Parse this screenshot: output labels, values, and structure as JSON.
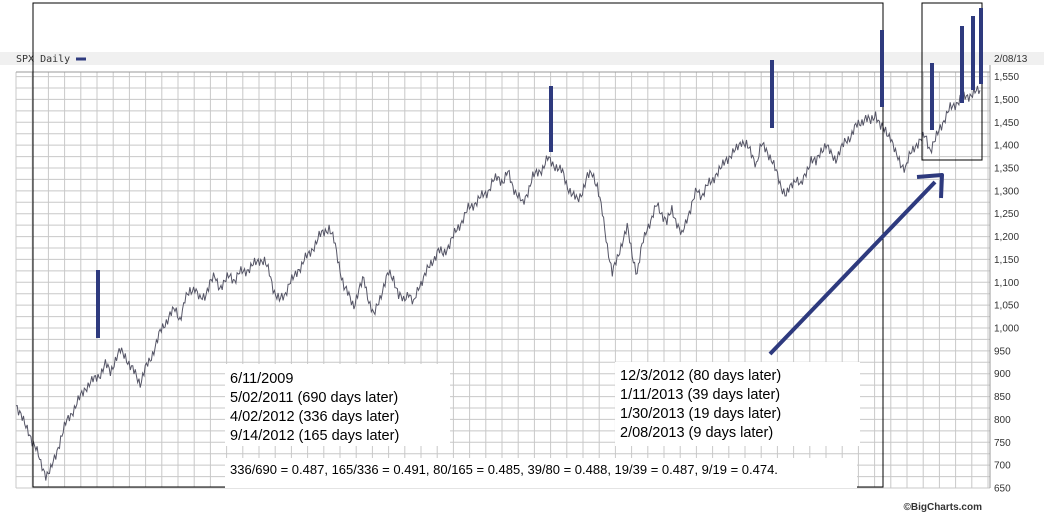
{
  "chart_data": {
    "type": "line",
    "legend": "SPX Daily",
    "date_label": "2/08/13",
    "credit": "©BigCharts.com",
    "ylim": [
      650,
      1560
    ],
    "y_ticks": [
      "650",
      "700",
      "750",
      "800",
      "850",
      "900",
      "950",
      "1,000",
      "1,050",
      "1,100",
      "1,150",
      "1,200",
      "1,250",
      "1,300",
      "1,350",
      "1,400",
      "1,450",
      "1,500",
      "1,550"
    ],
    "grid": true,
    "series": [
      {
        "values": [
          830,
          815,
          780,
          760,
          740,
          700,
          680,
          690,
          720,
          760,
          790,
          810,
          830,
          850,
          870,
          880,
          890,
          900,
          920,
          905,
          930,
          950,
          940,
          915,
          900,
          880,
          910,
          930,
          960,
          990,
          1010,
          1030,
          1040,
          1020,
          1060,
          1080,
          1090,
          1060,
          1070,
          1100,
          1110,
          1090,
          1100,
          1115,
          1105,
          1120,
          1125,
          1130,
          1140,
          1150,
          1145,
          1120,
          1080,
          1060,
          1070,
          1100,
          1110,
          1130,
          1150,
          1160,
          1180,
          1200,
          1210,
          1220,
          1190,
          1140,
          1090,
          1070,
          1050,
          1080,
          1110,
          1060,
          1025,
          1060,
          1090,
          1120,
          1110,
          1070,
          1060,
          1080,
          1050,
          1090,
          1110,
          1130,
          1150,
          1170,
          1160,
          1180,
          1200,
          1220,
          1240,
          1260,
          1270,
          1280,
          1290,
          1300,
          1320,
          1330,
          1320,
          1340,
          1310,
          1290,
          1270,
          1300,
          1330,
          1340,
          1350,
          1370,
          1360,
          1350,
          1340,
          1310,
          1290,
          1280,
          1300,
          1330,
          1340,
          1310,
          1250,
          1180,
          1120,
          1150,
          1190,
          1220,
          1160,
          1120,
          1180,
          1220,
          1240,
          1270,
          1250,
          1230,
          1260,
          1230,
          1200,
          1240,
          1270,
          1300,
          1290,
          1310,
          1320,
          1340,
          1350,
          1370,
          1380,
          1390,
          1410,
          1400,
          1380,
          1360,
          1400,
          1390,
          1370,
          1340,
          1310,
          1290,
          1310,
          1330,
          1310,
          1340,
          1370,
          1360,
          1390,
          1400,
          1380,
          1370,
          1390,
          1410,
          1420,
          1440,
          1450,
          1460,
          1450,
          1470,
          1440,
          1430,
          1420,
          1380,
          1360,
          1350,
          1380,
          1400,
          1410,
          1420,
          1390,
          1410,
          1440,
          1460,
          1480,
          1490,
          1500,
          1505,
          1510,
          1515,
          1520
        ]
      }
    ],
    "annotations": {
      "left_box": [
        "6/11/2009",
        "5/02/2011 (690 days later)",
        "4/02/2012 (336 days later)",
        "9/14/2012 (165 days later)"
      ],
      "right_box": [
        "12/3/2012 (80 days later)",
        "1/11/2013 (39 days later)",
        "1/30/2013 (19 days later)",
        "2/08/2013 (9 days later)"
      ],
      "ratio_line": "336/690 = 0.487, 165/336 = 0.491, 80/165 = 0.485, 39/80 = 0.488, 19/39 = 0.487, 9/19 = 0.474."
    },
    "colors": {
      "price_line": "#555566",
      "marker": "#2e3a7e",
      "grid": "#c8c8c8",
      "header_bar": "#f0f0f0"
    }
  }
}
